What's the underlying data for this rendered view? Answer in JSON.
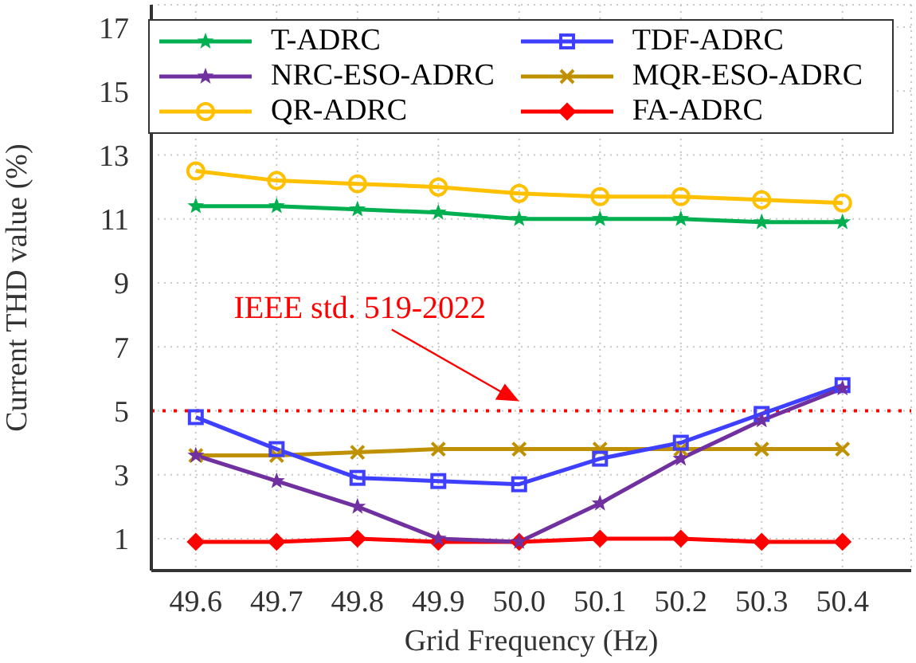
{
  "chart_data": {
    "type": "line",
    "xlabel": "Grid Frequency (Hz)",
    "ylabel": "Current THD value  (%)",
    "categories": [
      "49.6",
      "49.7",
      "49.8",
      "49.9",
      "50.0",
      "50.1",
      "50.2",
      "50.3",
      "50.4"
    ],
    "series": [
      {
        "name": "T-ADRC",
        "color": "#00b050",
        "marker": "star",
        "values": [
          11.4,
          11.4,
          11.3,
          11.2,
          11.0,
          11.0,
          11.0,
          10.9,
          10.9
        ]
      },
      {
        "name": "NRC-ESO-ADRC",
        "color": "#7030a0",
        "marker": "star",
        "values": [
          3.6,
          2.8,
          2.0,
          1.0,
          0.9,
          2.1,
          3.5,
          4.7,
          5.7
        ]
      },
      {
        "name": "QR-ADRC",
        "color": "#ffc000",
        "marker": "circle",
        "values": [
          12.5,
          12.2,
          12.1,
          12.0,
          11.8,
          11.7,
          11.7,
          11.6,
          11.5
        ]
      },
      {
        "name": "TDF-ADRC",
        "color": "#3f3fff",
        "marker": "square",
        "values": [
          4.8,
          3.8,
          2.9,
          2.8,
          2.7,
          3.5,
          4.0,
          4.9,
          5.8
        ]
      },
      {
        "name": "MQR-ESO-ADRC",
        "color": "#bf9000",
        "marker": "cross",
        "values": [
          3.6,
          3.6,
          3.7,
          3.8,
          3.8,
          3.8,
          3.8,
          3.8,
          3.8
        ]
      },
      {
        "name": "FA-ADRC",
        "color": "#ff0000",
        "marker": "diamond",
        "values": [
          0.9,
          0.9,
          1.0,
          0.9,
          0.9,
          1.0,
          1.0,
          0.9,
          0.9
        ]
      }
    ],
    "ylim": [
      0,
      17.7
    ],
    "yticks": [
      1,
      3,
      5,
      7,
      9,
      11,
      13,
      15,
      17
    ],
    "ref_lines": [
      {
        "axis": "y",
        "value": 5,
        "color": "#ff0000",
        "line_style": "dotted"
      }
    ],
    "annotations": [
      {
        "text": "IEEE std. 519-2022",
        "x": "50.0",
        "y": 5
      }
    ],
    "grid": true,
    "legend": "top"
  }
}
